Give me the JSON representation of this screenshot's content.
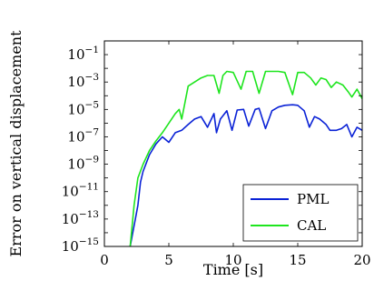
{
  "chart_data": {
    "type": "line",
    "xlabel": "Time [s]",
    "ylabel": "Error on vertical displacement",
    "xlim": [
      0,
      20
    ],
    "ylim": [
      1e-15,
      1
    ],
    "yscale": "log",
    "grid": false,
    "legend_position": "bottom-right",
    "x_ticks": [
      {
        "value": 0,
        "label": "0"
      },
      {
        "value": 5,
        "label": "5"
      },
      {
        "value": 10,
        "label": "10"
      },
      {
        "value": 15,
        "label": "15"
      },
      {
        "value": 20,
        "label": "20"
      }
    ],
    "y_ticks": [
      {
        "value": -15,
        "mantissa": "10",
        "exponent": "−15"
      },
      {
        "value": -13,
        "mantissa": "10",
        "exponent": "−13"
      },
      {
        "value": -11,
        "mantissa": "10",
        "exponent": "−11"
      },
      {
        "value": -9,
        "mantissa": "10",
        "exponent": "−9"
      },
      {
        "value": -7,
        "mantissa": "10",
        "exponent": "−7"
      },
      {
        "value": -5,
        "mantissa": "10",
        "exponent": "−5"
      },
      {
        "value": -3,
        "mantissa": "10",
        "exponent": "−3"
      },
      {
        "value": -1,
        "mantissa": "10",
        "exponent": "−1"
      }
    ],
    "series": [
      {
        "name": "PML",
        "color": "#0a22d6",
        "x": [
          2.0,
          2.4,
          2.6,
          2.8,
          3.0,
          3.5,
          4.0,
          4.5,
          5.0,
          5.5,
          6.0,
          6.5,
          7.0,
          7.5,
          8.0,
          8.5,
          8.7,
          9.0,
          9.5,
          9.9,
          10.3,
          10.8,
          11.2,
          11.7,
          12.0,
          12.5,
          13.0,
          13.5,
          14.0,
          14.6,
          15.0,
          15.5,
          15.9,
          16.3,
          16.7,
          17.2,
          17.5,
          18.0,
          18.4,
          18.8,
          19.2,
          19.6,
          20.0
        ],
        "y": [
          1e-15,
          1e-13,
          1e-12,
          5e-11,
          3e-10,
          5e-09,
          3e-08,
          1e-07,
          4e-08,
          2e-07,
          3e-07,
          8e-07,
          2e-06,
          3e-06,
          5e-07,
          5e-06,
          2e-07,
          2e-06,
          8e-06,
          3e-07,
          9e-06,
          1e-05,
          6e-07,
          1e-05,
          1.2e-05,
          4e-07,
          8e-06,
          1.5e-05,
          2e-05,
          2.2e-05,
          2e-05,
          8e-06,
          5e-07,
          3e-06,
          2e-06,
          8e-07,
          3e-07,
          3e-07,
          4e-07,
          8e-07,
          1e-07,
          5e-07,
          3e-07
        ]
      },
      {
        "name": "CAL",
        "color": "#1ee51e",
        "x": [
          2.0,
          2.3,
          2.6,
          3.0,
          3.5,
          4.0,
          4.5,
          5.0,
          5.5,
          5.8,
          6.0,
          6.5,
          7.0,
          7.5,
          8.0,
          8.5,
          8.9,
          9.2,
          9.5,
          10.0,
          10.6,
          11.0,
          11.5,
          12.0,
          12.5,
          13.0,
          13.5,
          14.0,
          14.6,
          15.0,
          15.5,
          16.0,
          16.4,
          16.8,
          17.2,
          17.6,
          18.0,
          18.5,
          18.9,
          19.2,
          19.6,
          20.0
        ],
        "y": [
          1e-15,
          1e-12,
          1e-10,
          1e-09,
          1e-08,
          5e-08,
          2e-07,
          1e-06,
          5e-06,
          1e-05,
          2e-06,
          0.0005,
          0.001,
          0.002,
          0.003,
          0.003,
          0.00015,
          0.003,
          0.006,
          0.005,
          0.0003,
          0.006,
          0.006,
          0.00015,
          0.006,
          0.006,
          0.006,
          0.005,
          0.00012,
          0.005,
          0.005,
          0.002,
          0.0006,
          0.002,
          0.0015,
          0.0004,
          0.001,
          0.0006,
          0.0002,
          8e-05,
          0.0003,
          6e-05
        ]
      }
    ]
  }
}
